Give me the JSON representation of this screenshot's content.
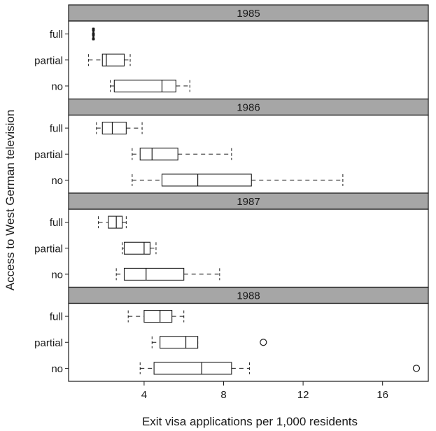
{
  "chart_data": {
    "type": "boxplot",
    "xlabel": "Exit visa applications per 1,000 residents",
    "ylabel": "Access to West German television",
    "xlim": [
      0.2,
      18.3
    ],
    "xticks": [
      4,
      8,
      12,
      16
    ],
    "xtick_labels": [
      "4",
      "8",
      "12",
      "16"
    ],
    "strip_color": "#a6a6a6",
    "panels": [
      {
        "strip": "1985",
        "groups": [
          {
            "label": "full",
            "whisker_low": 1.4,
            "q1": 1.42,
            "median": 1.45,
            "q3": 1.48,
            "whisker_high": 1.5,
            "outliers": []
          },
          {
            "label": "partial",
            "whisker_low": 1.2,
            "q1": 1.9,
            "median": 2.1,
            "q3": 3.0,
            "whisker_high": 3.3,
            "outliers": []
          },
          {
            "label": "no",
            "whisker_low": 2.3,
            "q1": 2.5,
            "median": 4.9,
            "q3": 5.6,
            "whisker_high": 6.3,
            "outliers": []
          }
        ]
      },
      {
        "strip": "1986",
        "groups": [
          {
            "label": "full",
            "whisker_low": 1.6,
            "q1": 1.9,
            "median": 2.4,
            "q3": 3.1,
            "whisker_high": 3.9,
            "outliers": []
          },
          {
            "label": "partial",
            "whisker_low": 3.4,
            "q1": 3.8,
            "median": 4.4,
            "q3": 5.7,
            "whisker_high": 8.4,
            "outliers": []
          },
          {
            "label": "no",
            "whisker_low": 3.4,
            "q1": 4.9,
            "median": 6.7,
            "q3": 9.4,
            "whisker_high": 14.0,
            "outliers": []
          }
        ]
      },
      {
        "strip": "1987",
        "groups": [
          {
            "label": "full",
            "whisker_low": 1.7,
            "q1": 2.2,
            "median": 2.6,
            "q3": 2.9,
            "whisker_high": 3.1,
            "outliers": []
          },
          {
            "label": "partial",
            "whisker_low": 2.9,
            "q1": 3.0,
            "median": 4.0,
            "q3": 4.3,
            "whisker_high": 4.6,
            "outliers": []
          },
          {
            "label": "no",
            "whisker_low": 2.6,
            "q1": 3.0,
            "median": 4.1,
            "q3": 6.0,
            "whisker_high": 7.8,
            "outliers": []
          }
        ]
      },
      {
        "strip": "1988",
        "groups": [
          {
            "label": "full",
            "whisker_low": 3.2,
            "q1": 4.0,
            "median": 4.8,
            "q3": 5.4,
            "whisker_high": 6.0,
            "outliers": []
          },
          {
            "label": "partial",
            "whisker_low": 4.4,
            "q1": 4.8,
            "median": 6.1,
            "q3": 6.7,
            "whisker_high": 6.7,
            "outliers": [
              10.0
            ]
          },
          {
            "label": "no",
            "whisker_low": 3.8,
            "q1": 4.5,
            "median": 6.9,
            "q3": 8.4,
            "whisker_high": 9.3,
            "outliers": [
              17.7
            ]
          }
        ]
      }
    ]
  }
}
